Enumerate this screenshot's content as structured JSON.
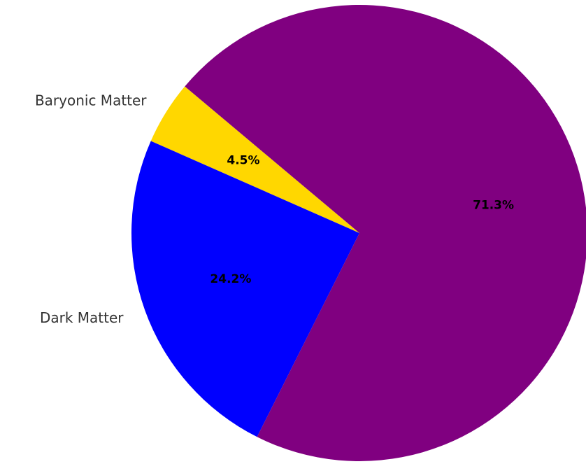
{
  "chart_data": {
    "type": "pie",
    "slices": [
      {
        "label": "Baryonic Matter",
        "value": 4.5,
        "display": "4.5%",
        "color": "#FFD700"
      },
      {
        "label": "Dark Matter",
        "value": 24.2,
        "display": "24.2%",
        "color": "#0000FF"
      },
      {
        "label": "",
        "value": 71.3,
        "display": "71.3%",
        "color": "#800080"
      }
    ],
    "title": "",
    "legend": "none"
  }
}
